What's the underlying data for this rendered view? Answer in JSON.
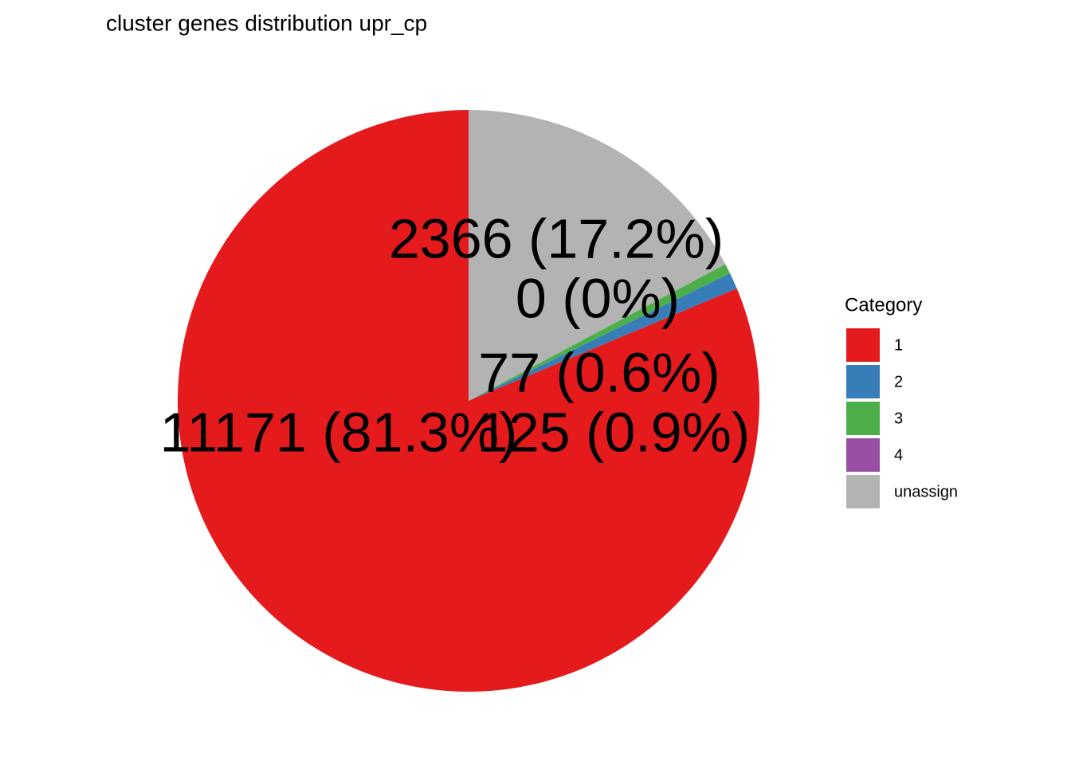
{
  "chart_data": {
    "type": "pie",
    "title": "cluster genes distribution upr_cp",
    "legend_title": "Category",
    "categories": [
      "1",
      "2",
      "3",
      "4",
      "unassign"
    ],
    "values": [
      11171,
      125,
      77,
      0,
      2366
    ],
    "value_labels": [
      "11171 (81.3%)",
      "125 (0.9%)",
      "77 (0.6%)",
      "0 (0%)",
      "2366 (17.2%)"
    ],
    "colors": [
      "#E41A1C",
      "#377EB8",
      "#4DAF4A",
      "#984EA3",
      "#B3B3B3"
    ],
    "legend": "right"
  }
}
